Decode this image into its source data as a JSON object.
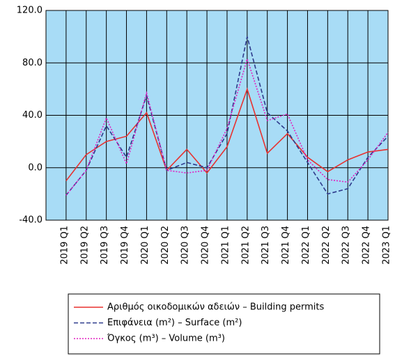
{
  "chart_data": {
    "type": "line",
    "categories": [
      "2019 Q1",
      "2019 Q2",
      "2019 Q3",
      "2019 Q4",
      "2020 Q1",
      "2020 Q2",
      "2020 Q3",
      "2020 Q4",
      "2021 Q1",
      "2021 Q2",
      "2021 Q3",
      "2021 Q4",
      "2022 Q1",
      "2022 Q2",
      "2022 Q3",
      "2022 Q4",
      "2023 Q1"
    ],
    "series": [
      {
        "name": "Αριθμός οικοδομικών αδειών – Building permits",
        "color": "#e8312f",
        "dash": "solid",
        "values": [
          -10,
          10,
          20,
          24,
          42,
          -2,
          14,
          -4,
          16,
          60,
          11,
          26,
          8,
          -3,
          6,
          12,
          14
        ]
      },
      {
        "name": "Επιφάνεια (m²) – Surface (m²)",
        "color": "#2e3a8c",
        "dash": "dashed",
        "values": [
          -21,
          -2,
          32,
          8,
          55,
          -2,
          4,
          0,
          26,
          100,
          42,
          28,
          4,
          -20,
          -16,
          8,
          24
        ]
      },
      {
        "name": "Όγκος (m³) – Volume (m³)",
        "color": "#e020c0",
        "dash": "dotted",
        "values": [
          -21,
          -2,
          38,
          3,
          57,
          -2,
          -4,
          -2,
          30,
          83,
          36,
          41,
          6,
          -9,
          -11,
          6,
          27
        ]
      }
    ],
    "ylim": [
      -40,
      120
    ],
    "yticks": [
      {
        "value": -40,
        "label": "-40.0"
      },
      {
        "value": 0,
        "label": "0.0"
      },
      {
        "value": 40,
        "label": "40.0"
      },
      {
        "value": 80,
        "label": "80.0"
      },
      {
        "value": 120,
        "label": "120.0"
      }
    ],
    "grid": true,
    "background": "#a8dcf6",
    "legend": "bottom"
  }
}
